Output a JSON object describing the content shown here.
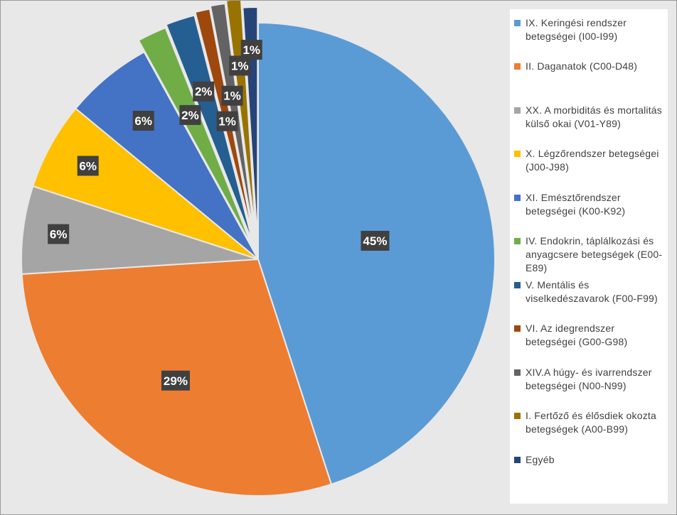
{
  "chart_data": {
    "type": "pie",
    "slices": [
      {
        "label": "IX. Keringési rendszer betegségei (I00-I99)",
        "value": 45,
        "data_label": "45%",
        "color": "#5b9bd5"
      },
      {
        "label": "II. Daganatok (C00-D48)",
        "value": 29,
        "data_label": "29%",
        "color": "#ed7d31"
      },
      {
        "label": "XX. A morbiditás és mortalitás külső okai (V01-Y89)",
        "value": 6,
        "data_label": "6%",
        "color": "#a5a5a5"
      },
      {
        "label": "X. Légzőrendszer betegségei (J00-J98)",
        "value": 6,
        "data_label": "6%",
        "color": "#ffc000"
      },
      {
        "label": "XI. Emésztőrendszer betegségei (K00-K92)",
        "value": 6,
        "data_label": "6%",
        "color": "#4472c4"
      },
      {
        "label": "IV. Endokrin, táplálkozási és anyagcsere betegségek (E00-E89)",
        "value": 2,
        "data_label": "2%",
        "color": "#70ad47"
      },
      {
        "label": "V. Mentális és viselkedészavarok (F00-F99)",
        "value": 2,
        "data_label": "2%",
        "color": "#255e91"
      },
      {
        "label": "VI. Az idegrendszer betegségei (G00-G98)",
        "value": 1,
        "data_label": "1%",
        "color": "#9e480e"
      },
      {
        "label": "XIV.A húgy- és ivarrendszer betegségei (N00-N99)",
        "value": 1,
        "data_label": "1%",
        "color": "#636363"
      },
      {
        "label": "I. Fertőző és élősdiek okozta betegségek (A00-B99)",
        "value": 1,
        "data_label": "1%",
        "color": "#997300"
      },
      {
        "label": "Egyéb",
        "value": 1,
        "data_label": "1%",
        "color": "#264478"
      }
    ],
    "legend_position": "right"
  },
  "legend": {
    "items": [
      {
        "text": "IX. Keringési rendszer betegségei (I00-I99)",
        "color": "#5b9bd5"
      },
      {
        "text": "II. Daganatok (C00-D48)",
        "color": "#ed7d31"
      },
      {
        "text": "XX. A morbiditás és mortalitás külső okai (V01-Y89)",
        "color": "#a5a5a5"
      },
      {
        "text": "X. Légzőrendszer betegségei (J00-J98)",
        "color": "#ffc000"
      },
      {
        "text": "XI. Emésztőrendszer betegségei (K00-K92)",
        "color": "#4472c4"
      },
      {
        "text": "IV. Endokrin, táplálkozási és anyagcsere betegségek (E00-E89)",
        "color": "#70ad47"
      },
      {
        "text": "V. Mentális és viselkedészavarok (F00-F99)",
        "color": "#255e91"
      },
      {
        "text": "VI. Az idegrendszer betegségei (G00-G98)",
        "color": "#9e480e"
      },
      {
        "text": "XIV.A húgy- és ivarrendszer betegségei (N00-N99)",
        "color": "#636363"
      },
      {
        "text": "I. Fertőző és élősdiek okozta betegségek (A00-B99)",
        "color": "#997300"
      },
      {
        "text": "Egyéb",
        "color": "#264478"
      }
    ]
  }
}
